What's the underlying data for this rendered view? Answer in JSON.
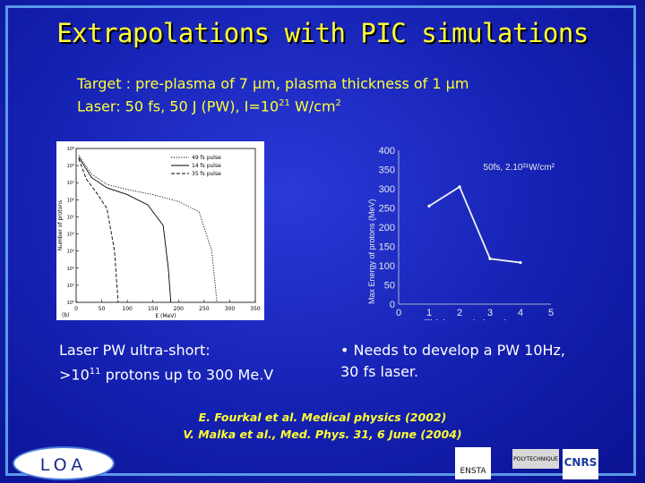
{
  "slide": {
    "title": "Extrapolations with PIC simulations",
    "target_line1": "Target : pre-plasma of 7 µm, plasma thickness of 1 µm",
    "target_line2_prefix": "Laser: 50 fs, 50 J (PW), I=10",
    "target_line2_exp": "21",
    "target_line2_suffix": " W/cm",
    "target_line2_unit_exp": "2",
    "caption_left_line1": "Laser PW ultra-short:",
    "caption_left_prefix": ">10",
    "caption_left_exp": "11",
    "caption_left_suffix": " protons up to 300 Me.V",
    "caption_right_line1": "• Needs to develop a PW 10Hz,",
    "caption_right_line2": "30 fs laser.",
    "ref1": "E. Fourkal et al. Medical physics (2002)",
    "ref2": "V. Malka et al., Med. Phys. 31, 6 June (2004)",
    "logo_loa": "LOA",
    "logo_ensta": "ENSTA",
    "logo_poly": "POLYTECHNIQUE",
    "logo_cnrs": "CNRS"
  },
  "chart_data": [
    {
      "type": "line",
      "panel_label": "(b)",
      "xlabel": "E (MeV)",
      "ylabel": "Number of protons",
      "x_ticks": [
        "0",
        "50",
        "100",
        "150",
        "200",
        "250",
        "300",
        "350"
      ],
      "y_ticks": [
        "10⁹",
        "10⁸",
        "10⁷",
        "10⁶",
        "10⁵",
        "10⁴",
        "10³",
        "10²",
        "10¹",
        "10⁰"
      ],
      "legend": [
        "49 fs pulse",
        "14 fs pulse",
        "35 fs pulse"
      ],
      "legend_position": "top-right",
      "xlim": [
        0,
        350
      ],
      "ylim_log10": [
        0,
        9
      ],
      "series": [
        {
          "name": "49 fs pulse",
          "style": "dotted",
          "x": [
            5,
            30,
            60,
            100,
            150,
            200,
            240,
            265,
            275
          ],
          "y_log10": [
            8.6,
            7.5,
            6.9,
            6.6,
            6.3,
            5.9,
            5.3,
            3.0,
            0
          ]
        },
        {
          "name": "14 fs pulse",
          "style": "solid",
          "x": [
            5,
            30,
            60,
            100,
            140,
            170,
            180,
            185
          ],
          "y_log10": [
            8.5,
            7.3,
            6.7,
            6.3,
            5.7,
            4.5,
            2.0,
            0
          ]
        },
        {
          "name": "35 fs pulse",
          "style": "dashed",
          "x": [
            5,
            20,
            40,
            60,
            75,
            82
          ],
          "y_log10": [
            8.4,
            7.2,
            6.4,
            5.5,
            3.0,
            0
          ]
        }
      ]
    },
    {
      "type": "line",
      "title": "50fs, 2.10²¹W/cm²",
      "xlabel": "Thickness (micron)",
      "ylabel": "Max Energy of protons (MeV)",
      "x_ticks": [
        "0",
        "1",
        "2",
        "3",
        "4",
        "5"
      ],
      "y_ticks": [
        "0",
        "50",
        "100",
        "150",
        "200",
        "250",
        "300",
        "350",
        "400"
      ],
      "xlim": [
        0,
        5
      ],
      "ylim": [
        0,
        400
      ],
      "series": [
        {
          "x": [
            1,
            2,
            3,
            4
          ],
          "y": [
            255,
            305,
            118,
            108
          ]
        }
      ]
    }
  ]
}
